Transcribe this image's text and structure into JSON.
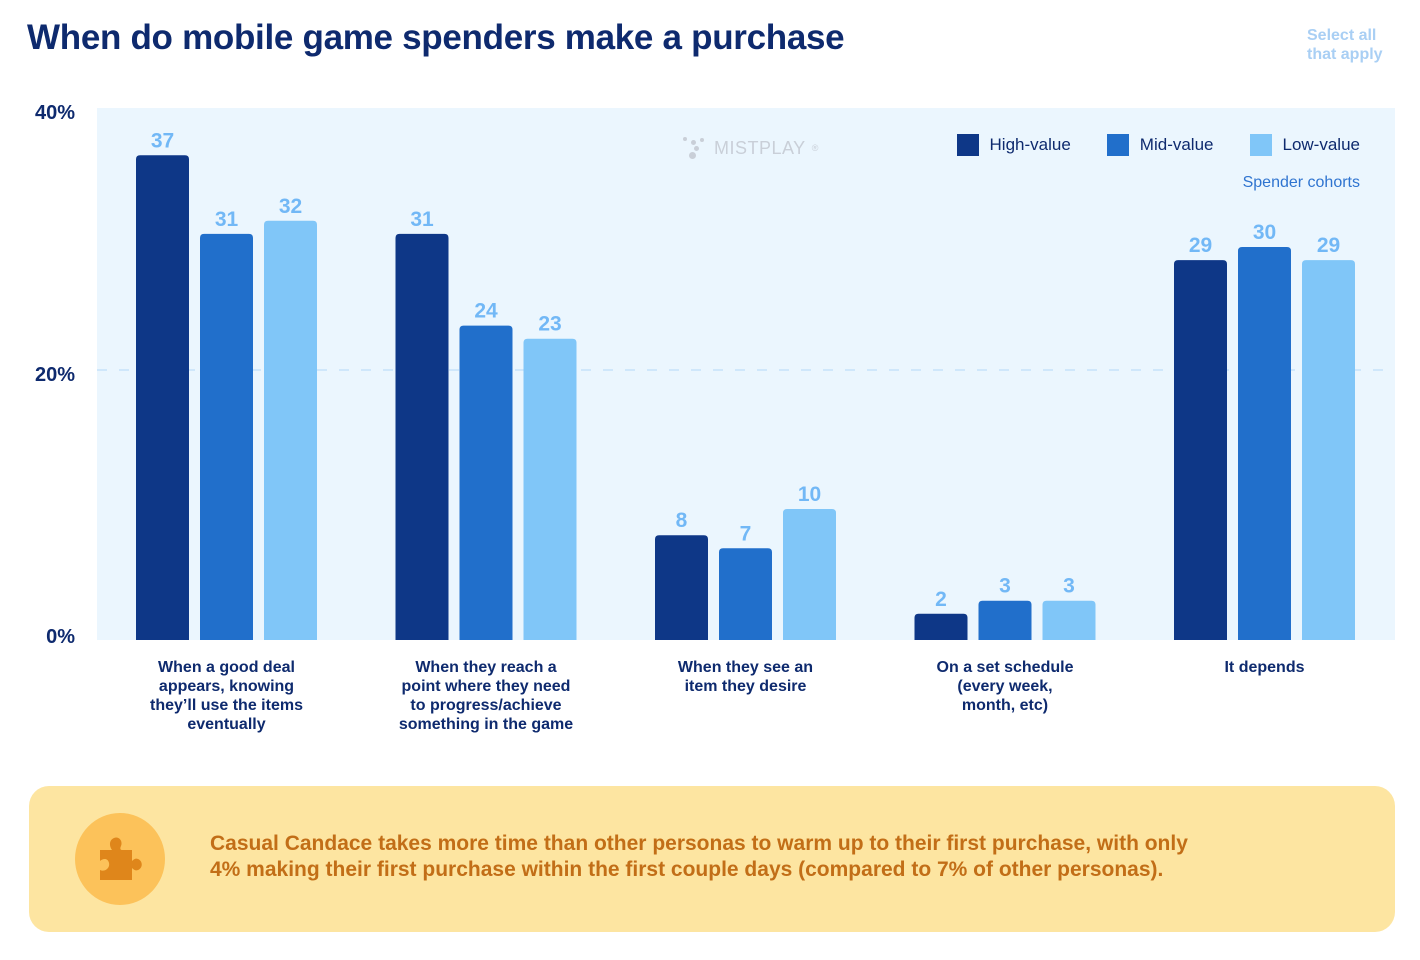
{
  "header": {
    "title": "When do mobile game spenders make a purchase",
    "note_line1": "Select all",
    "note_line2": "that apply"
  },
  "watermark": {
    "text": "MISTPLAY",
    "mark": "®"
  },
  "legend": {
    "items": [
      {
        "label": "High-value",
        "color": "#0e3787"
      },
      {
        "label": "Mid-value",
        "color": "#216fcb"
      },
      {
        "label": "Low-value",
        "color": "#80c6f8"
      }
    ],
    "subtitle": "Spender cohorts"
  },
  "chart_data": {
    "type": "bar",
    "title": "When do mobile game spenders make a purchase",
    "xlabel": "",
    "ylabel": "",
    "ylim": [
      0,
      40
    ],
    "yticks": [
      0,
      20,
      40
    ],
    "ytick_labels": [
      "0%",
      "20%",
      "40%"
    ],
    "grid": "dashed line at 20%",
    "legend_position": "top-right",
    "legend_title": "Spender cohorts",
    "categories": [
      [
        "When a good deal",
        "appears, knowing",
        "they’ll use the items",
        "eventually"
      ],
      [
        "When they reach a",
        "point where they need",
        "to progress/achieve",
        "something in the game"
      ],
      [
        "When they see an",
        "item they desire"
      ],
      [
        "On a set schedule",
        "(every week,",
        "month, etc)"
      ],
      [
        "It depends"
      ]
    ],
    "series": [
      {
        "name": "High-value",
        "color": "#0e3787",
        "values": [
          37,
          31,
          8,
          2,
          29
        ]
      },
      {
        "name": "Mid-value",
        "color": "#216fcb",
        "values": [
          31,
          24,
          7,
          3,
          30
        ]
      },
      {
        "name": "Low-value",
        "color": "#80c6f8",
        "values": [
          32,
          23,
          10,
          3,
          29
        ]
      }
    ],
    "data_label_color": "#72b8f6"
  },
  "callout": {
    "icon": "puzzle-piece-icon",
    "text_line1": "Casual Candace takes more time than other personas to warm up to their first purchase, with only",
    "text_line2": "4% making their first purchase within the first couple days (compared to 7% of other personas)."
  }
}
